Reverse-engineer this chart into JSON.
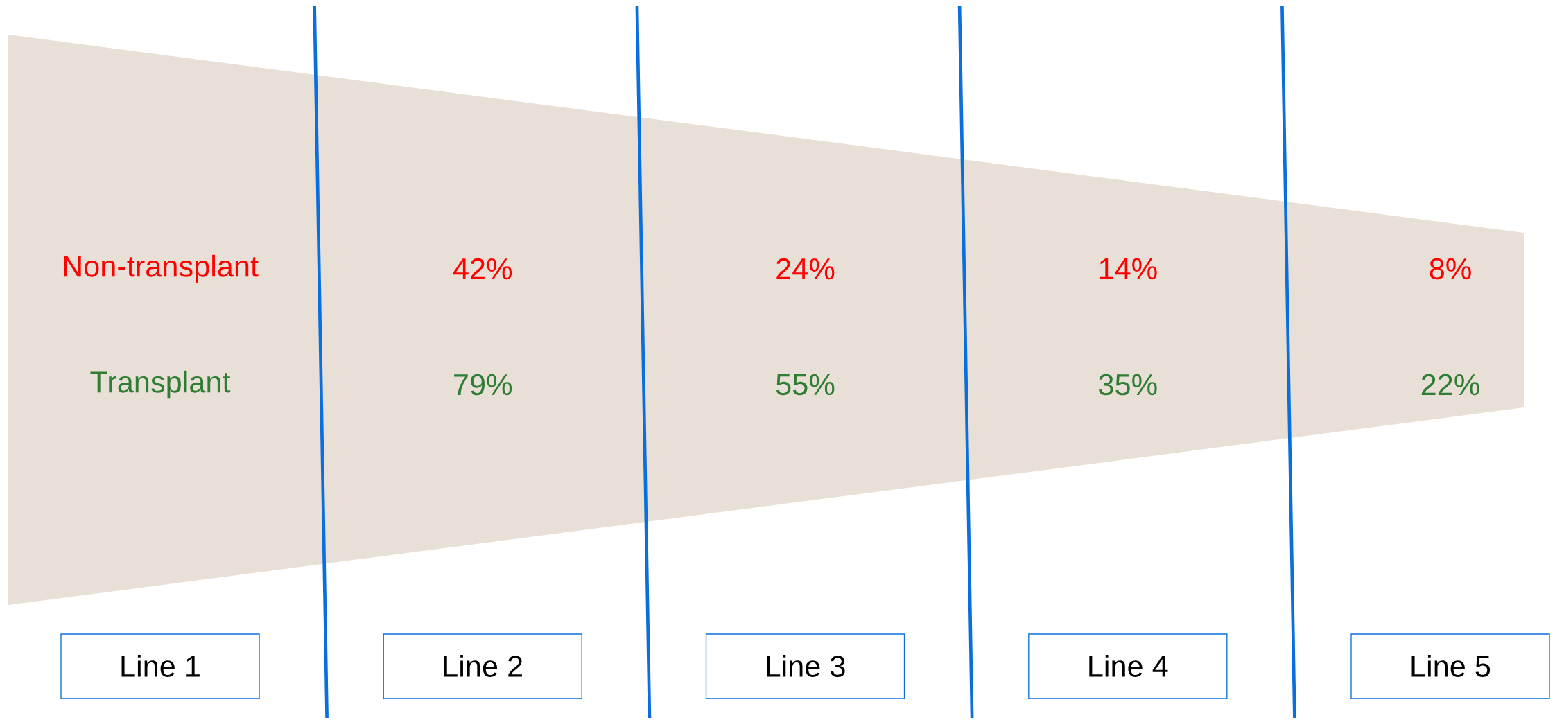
{
  "chart_data": {
    "type": "other",
    "categories": [
      "Line 1",
      "Line 2",
      "Line 3",
      "Line 4",
      "Line 5"
    ],
    "series": [
      {
        "name": "Non-transplant",
        "color": "#ff0000",
        "values": [
          null,
          42,
          24,
          14,
          8
        ],
        "value_labels": [
          null,
          "42%",
          "24%",
          "14%",
          "8%"
        ]
      },
      {
        "name": "Transplant",
        "color": "#2e7d32",
        "values": [
          null,
          79,
          55,
          35,
          22
        ],
        "value_labels": [
          null,
          "79%",
          "55%",
          "35%",
          "22%"
        ]
      }
    ]
  }
}
